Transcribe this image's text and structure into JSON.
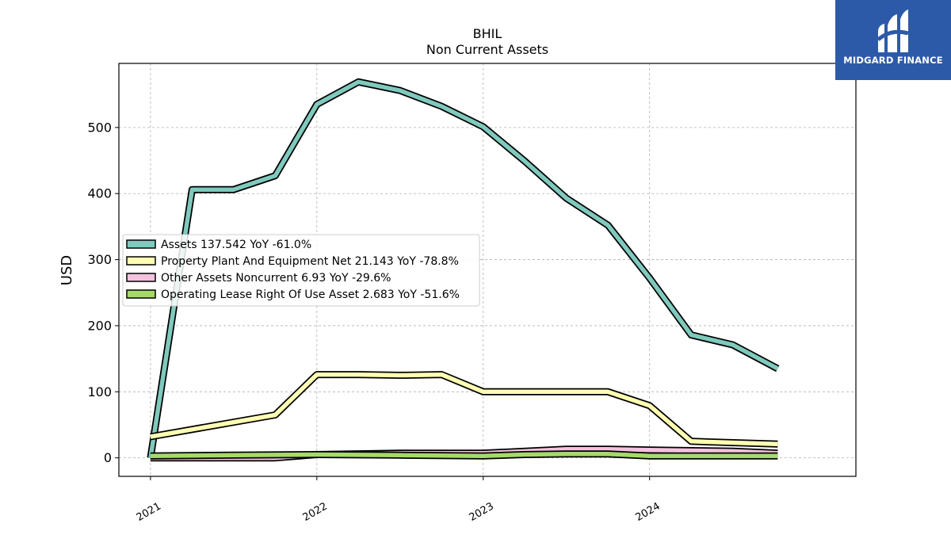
{
  "chart_data": {
    "type": "line",
    "title": "BHIL",
    "subtitle": "Non Current  Assets",
    "ylabel": "USD",
    "xlabel": "",
    "ylim": [
      -28,
      597
    ],
    "xlim": [
      2020.81,
      2025.24
    ],
    "yticks": [
      0,
      100,
      200,
      300,
      400,
      500
    ],
    "xticks": [
      2021,
      2022,
      2023,
      2024
    ],
    "xtick_labels": [
      "2021",
      "2022",
      "2023",
      "2024"
    ],
    "grid": true,
    "legend_position": "center-left",
    "series": [
      {
        "name": "Assets  137.542 YoY -61.0%",
        "color": "#7fc9bd",
        "x": [
          2021.0,
          2021.25,
          2021.5,
          2021.75,
          2022.0,
          2022.25,
          2022.5,
          2022.75,
          2023.0,
          2023.25,
          2023.5,
          2023.75,
          2024.0,
          2024.25,
          2024.5,
          2024.77
        ],
        "y": [
          0,
          406,
          406,
          427,
          535,
          569,
          556,
          532,
          501,
          449,
          393,
          352,
          272,
          186,
          171,
          135
        ]
      },
      {
        "name": "Property Plant And Equipment Net  21.143 YoY -78.8%",
        "color": "#ffffb3",
        "x": [
          2021.0,
          2021.75,
          2022.0,
          2022.25,
          2022.5,
          2022.75,
          2023.0,
          2023.25,
          2023.5,
          2023.75,
          2024.0,
          2024.25,
          2024.5,
          2024.77
        ],
        "y": [
          32,
          65,
          126,
          126,
          125,
          126,
          100,
          100,
          100,
          100,
          79,
          25,
          23,
          21
        ]
      },
      {
        "name": "Other Assets Noncurrent  6.93 YoY -29.6%",
        "color": "#f4c2de",
        "x": [
          2021.0,
          2021.75,
          2022.0,
          2022.5,
          2023.0,
          2023.5,
          2023.75,
          2024.0,
          2024.5,
          2024.77
        ],
        "y": [
          0,
          0,
          5,
          7,
          7,
          13,
          13,
          12,
          10,
          7
        ]
      },
      {
        "name": "Operating Lease Right Of Use Asset  2.683 YoY -51.6%",
        "color": "#a6d96a",
        "x": [
          2021.0,
          2021.5,
          2022.0,
          2022.5,
          2023.0,
          2023.25,
          2023.5,
          2023.75,
          2024.0,
          2024.5,
          2024.77
        ],
        "y": [
          3,
          4,
          5,
          4,
          3,
          5,
          6,
          6,
          3,
          3,
          3
        ]
      }
    ]
  },
  "logo": {
    "text": "MIDGARD FINANCE",
    "icon": "midgard-logo-icon",
    "background": "#2d5aa8"
  }
}
